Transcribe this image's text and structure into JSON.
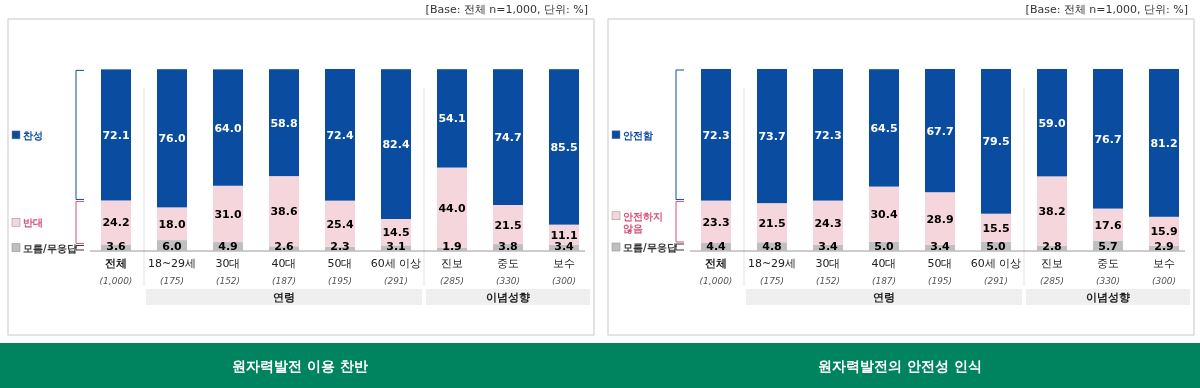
{
  "chart_data": [
    {
      "type": "bar",
      "stacked": true,
      "title": "원자력발전 이용 찬반",
      "legend": "left",
      "categories": [
        "전체",
        "18~29세",
        "30대",
        "40대",
        "50대",
        "60세 이상",
        "진보",
        "중도",
        "보수"
      ],
      "series": [
        {
          "name": "모름/무응답",
          "color": "#bfbfbf",
          "values": [
            3.6,
            6.0,
            4.9,
            2.6,
            2.3,
            3.1,
            1.9,
            3.8,
            3.4
          ],
          "value_labels": [
            "3.6",
            "6.0",
            "4.9",
            "2.6",
            "2.3",
            "3.1",
            "1.9",
            "3.8",
            "3.4"
          ]
        },
        {
          "name": "반대",
          "color": "#f5d6dc",
          "values": [
            24.2,
            18.0,
            31.0,
            38.6,
            25.4,
            14.5,
            44.0,
            21.5,
            11.1
          ],
          "value_labels": [
            "24.2",
            "18.0",
            "31.0",
            "38.6",
            "25.4",
            "14.5",
            "44.0",
            "21.5",
            "11.1"
          ]
        },
        {
          "name": "찬성",
          "color": "#0a4c9f",
          "values": [
            72.1,
            76.0,
            64.0,
            58.8,
            72.4,
            82.4,
            54.1,
            74.7,
            85.5
          ],
          "value_labels": [
            "72.1",
            "76.0",
            "64.0",
            "58.8",
            "72.4",
            "82.4",
            "54.1",
            "74.7",
            "85.5"
          ]
        }
      ],
      "annotations": [
        "[Base:  전체  n=1,000,  단위:  %]",
        "(1,000)",
        "(175)",
        "(152)",
        "(187)",
        "(195)",
        "(291)",
        "(285)",
        "(330)",
        "(300)",
        "연령",
        "이념성향"
      ]
    },
    {
      "type": "bar",
      "stacked": true,
      "title": "원자력발전의 안전성 인식",
      "legend": "left",
      "categories": [
        "전체",
        "18~29세",
        "30대",
        "40대",
        "50대",
        "60세 이상",
        "진보",
        "중도",
        "보수"
      ],
      "series": [
        {
          "name": "모름/무응답",
          "color": "#bfbfbf",
          "values": [
            4.4,
            4.8,
            3.4,
            5.0,
            3.4,
            5.0,
            2.8,
            5.7,
            2.9
          ],
          "value_labels": [
            "4.4",
            "4.8",
            "3.4",
            "5.0",
            "3.4",
            "5.0",
            "2.8",
            "5.7",
            "2.9"
          ]
        },
        {
          "name": "안전하지 않음",
          "color": "#f5d6dc",
          "values": [
            23.3,
            21.5,
            24.3,
            30.4,
            28.9,
            15.5,
            38.2,
            17.6,
            15.9
          ],
          "value_labels": [
            "23.3",
            "21.5",
            "24.3",
            "30.4",
            "28.9",
            "15.5",
            "38.2",
            "17.6",
            "15.9"
          ]
        },
        {
          "name": "안전함",
          "color": "#0a4c9f",
          "values": [
            72.3,
            73.7,
            72.3,
            64.5,
            67.7,
            79.5,
            59.0,
            76.7,
            81.2
          ],
          "value_labels": [
            "72.3",
            "73.7",
            "72.3",
            "64.5",
            "67.7",
            "79.5",
            "59.0",
            "76.7",
            "81.2"
          ]
        }
      ],
      "annotations": [
        "[Base:  전체  n=1,000,  단위:  %]",
        "(1,000)",
        "(175)",
        "(152)",
        "(187)",
        "(195)",
        "(291)",
        "(285)",
        "(330)",
        "(300)",
        "연령",
        "이념성향"
      ]
    }
  ]
}
